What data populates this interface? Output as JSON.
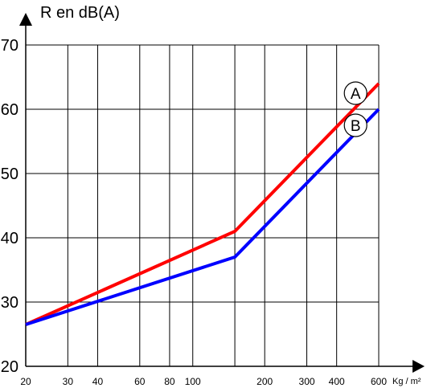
{
  "chart_data": {
    "type": "line",
    "title": "R en dB(A)",
    "xlabel": "Kg / m²",
    "ylabel": "",
    "x_scale": "log",
    "xlim": [
      20,
      600
    ],
    "ylim": [
      20,
      70
    ],
    "grid": true,
    "x_ticks": [
      20,
      30,
      40,
      60,
      80,
      100,
      200,
      300,
      400,
      600
    ],
    "x_tick_labels": [
      "20",
      "30",
      "40",
      "60",
      "80",
      "100",
      "200",
      "300",
      "400",
      "600"
    ],
    "x_grid": [
      20,
      30,
      40,
      60,
      80,
      100,
      150,
      200,
      300,
      400,
      600
    ],
    "y_ticks": [
      20,
      30,
      40,
      50,
      60,
      70
    ],
    "y_tick_labels": [
      "20",
      "30",
      "40",
      "50",
      "60",
      "70"
    ],
    "series": [
      {
        "name": "A",
        "color": "#ff0000",
        "x": [
          20,
          150,
          600
        ],
        "y": [
          26.5,
          41,
          64
        ]
      },
      {
        "name": "B",
        "color": "#0000ff",
        "x": [
          20,
          150,
          600
        ],
        "y": [
          26.5,
          37,
          60
        ]
      }
    ],
    "annotations": [
      {
        "text": "A",
        "x": 480,
        "y": 62.5
      },
      {
        "text": "B",
        "x": 480,
        "y": 57.5
      }
    ]
  }
}
